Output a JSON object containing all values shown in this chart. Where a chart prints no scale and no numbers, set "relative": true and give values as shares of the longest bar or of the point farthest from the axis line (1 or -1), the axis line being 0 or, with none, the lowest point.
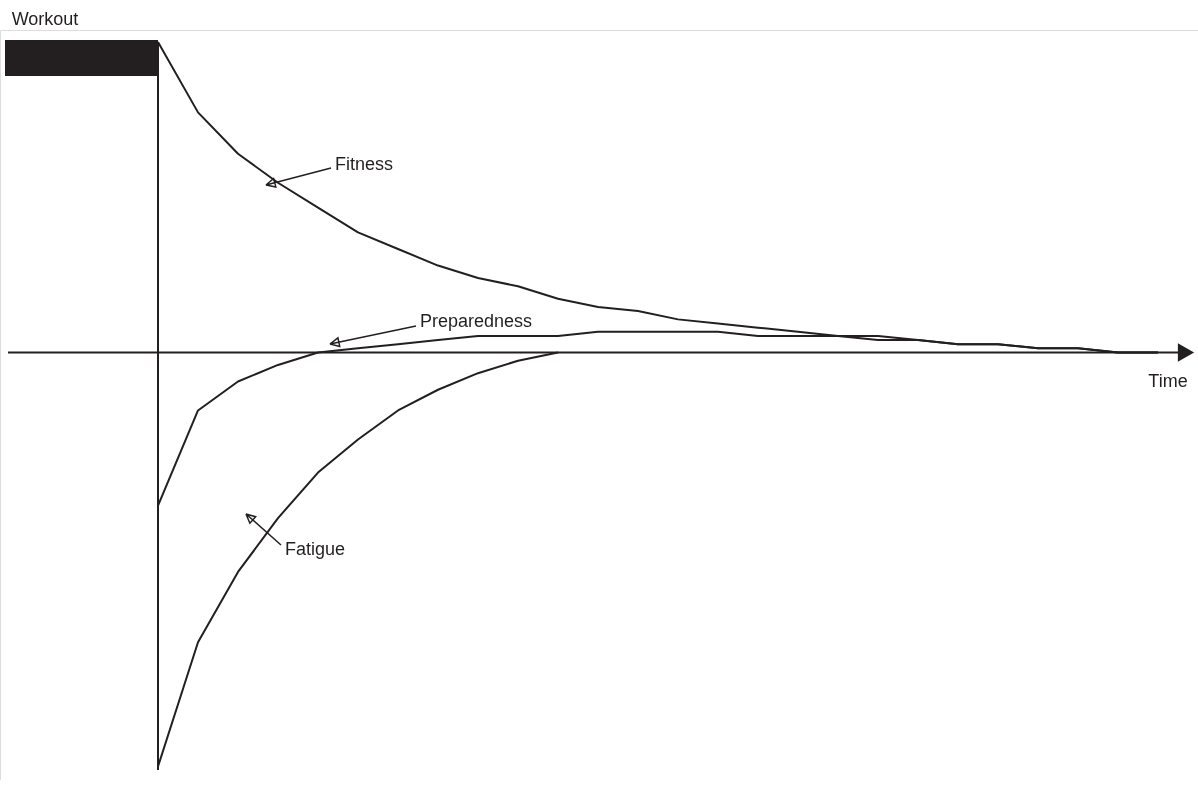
{
  "chart_data": {
    "type": "line",
    "relative": true,
    "xlabel": "Time",
    "annotations": [
      "Workout"
    ],
    "categories": [
      null,
      null,
      null,
      null,
      null,
      null,
      null,
      null,
      null,
      null,
      null,
      null,
      null,
      null,
      null,
      null,
      null,
      null,
      null,
      null,
      null,
      null,
      null,
      null,
      null,
      null
    ],
    "series": [
      {
        "name": "Fitness",
        "color": "#231f20",
        "values": [
          0.75,
          0.58,
          0.48,
          0.41,
          0.35,
          0.29,
          0.25,
          0.21,
          0.18,
          0.16,
          0.13,
          0.11,
          0.1,
          0.08,
          0.07,
          0.06,
          0.05,
          0.04,
          0.04,
          0.03,
          0.02,
          0.02,
          0.01,
          0.01,
          0.0,
          0.0
        ]
      },
      {
        "name": "Preparedness",
        "color": "#231f20",
        "values": [
          -0.37,
          -0.14,
          -0.07,
          -0.03,
          0.0,
          0.01,
          0.02,
          0.03,
          0.04,
          0.04,
          0.04,
          0.05,
          0.05,
          0.05,
          0.05,
          0.04,
          0.04,
          0.04,
          0.03,
          0.03,
          0.02,
          0.02,
          0.01,
          0.01,
          0.0,
          0.0
        ]
      },
      {
        "name": "Fatigue",
        "color": "#231f20",
        "values": [
          -1,
          -0.7,
          -0.53,
          -0.4,
          -0.29,
          -0.21,
          -0.14,
          -0.09,
          -0.05,
          -0.02,
          0.0,
          null,
          null,
          null,
          null,
          null,
          null,
          null,
          null,
          null,
          null,
          null,
          null,
          null,
          null,
          null
        ]
      }
    ]
  }
}
